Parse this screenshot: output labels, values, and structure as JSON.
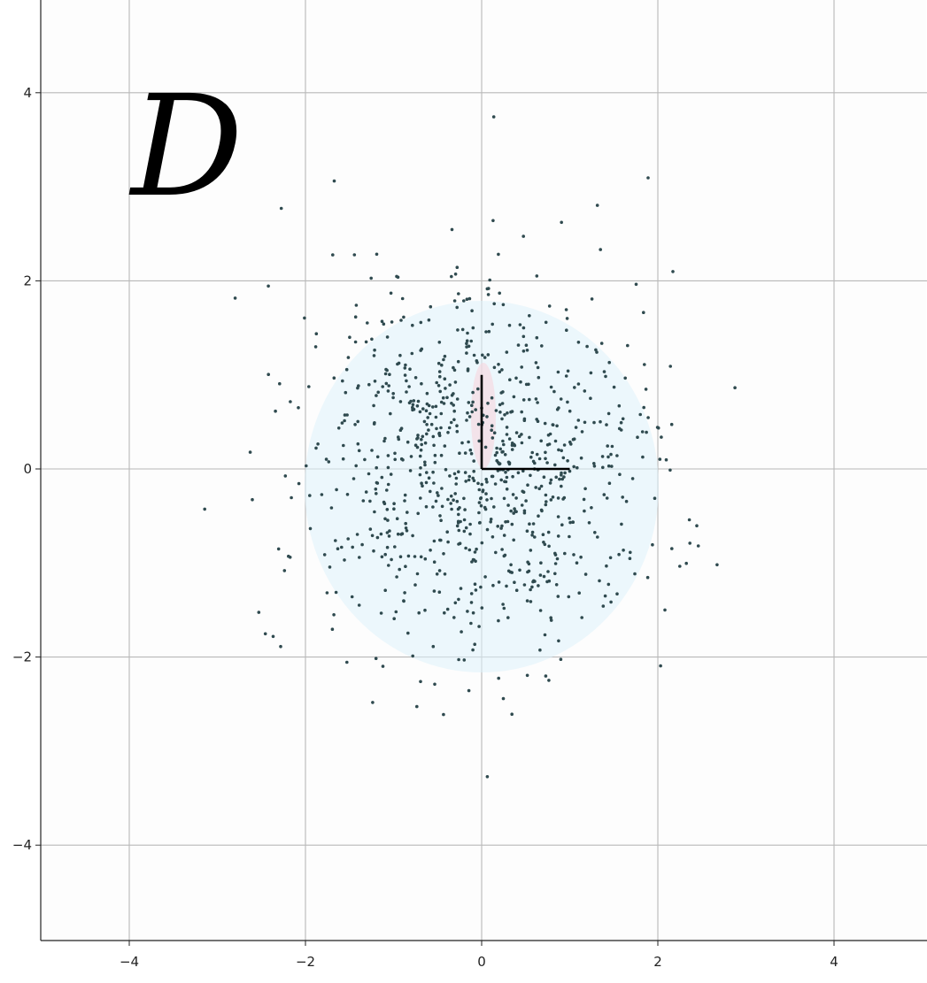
{
  "chart_data": {
    "type": "scatter",
    "panel_label": "D",
    "xlim": [
      -5,
      5
    ],
    "ylim": [
      -5,
      5
    ],
    "x_ticks": [
      -4,
      -2,
      0,
      2,
      4
    ],
    "y_ticks": [
      -4,
      -2,
      0,
      2,
      4
    ],
    "x_tick_labels": [
      "−4",
      "−2",
      "0",
      "2",
      "4"
    ],
    "y_tick_labels": [
      "4",
      "2",
      "0",
      "−2",
      "−4"
    ],
    "grid": true,
    "point_color": "#2f4a4f",
    "vector_color": "#000000",
    "vectors": [
      {
        "from": [
          0,
          0
        ],
        "to": [
          1.0,
          0.0
        ]
      },
      {
        "from": [
          0,
          0
        ],
        "to": [
          0.0,
          1.0
        ]
      }
    ],
    "points": {
      "count": 900,
      "distribution": "standard normal",
      "mean": [
        0,
        0
      ],
      "std": [
        1,
        1
      ]
    }
  }
}
